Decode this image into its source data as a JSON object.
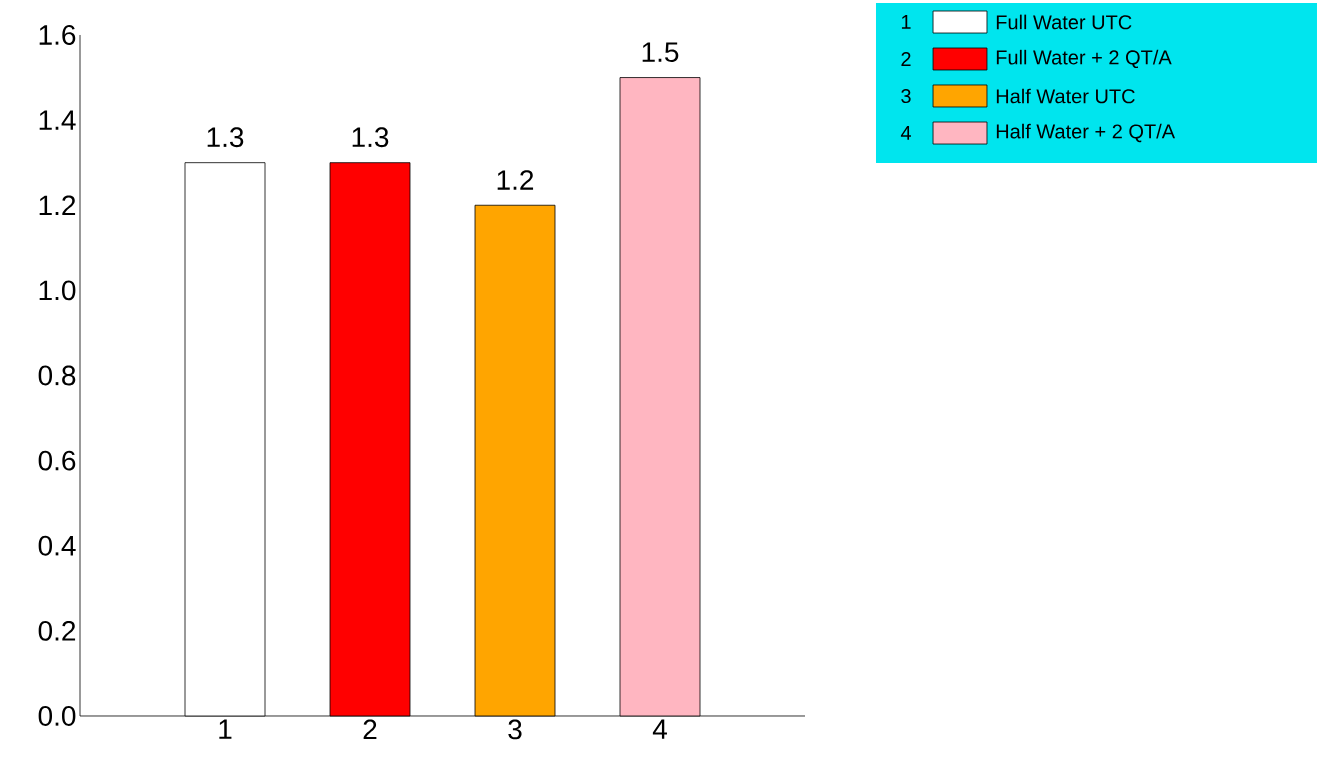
{
  "chart_data": {
    "type": "bar",
    "categories": [
      "1",
      "2",
      "3",
      "4"
    ],
    "series": [
      {
        "name": "Full Water UTC",
        "color": "#ffffff",
        "values": [
          1.3,
          null,
          null,
          null
        ]
      },
      {
        "name": "Full Water + 2 QT/A",
        "color": "#ff0000",
        "values": [
          null,
          1.3,
          null,
          null
        ]
      },
      {
        "name": "Half Water UTC",
        "color": "#ffa500",
        "values": [
          null,
          null,
          1.2,
          null
        ]
      },
      {
        "name": "Half Water + 2 QT/A",
        "color": "#ffb6c1",
        "values": [
          null,
          null,
          null,
          1.5
        ]
      }
    ],
    "ylim": [
      0,
      1.6
    ],
    "yticks": [
      {
        "value": 0,
        "label": "0.0"
      },
      {
        "value": 0.2,
        "label": "0.2"
      },
      {
        "value": 0.4,
        "label": "0.4"
      },
      {
        "value": 0.6,
        "label": "0.6"
      },
      {
        "value": 0.8,
        "label": "0.8"
      },
      {
        "value": 1.0,
        "label": "1.0"
      },
      {
        "value": 1.2,
        "label": "1.2"
      },
      {
        "value": 1.4,
        "label": "1.4"
      },
      {
        "value": 1.6,
        "label": "1.6"
      }
    ],
    "data_labels": true,
    "legend": "top right",
    "grid": false
  }
}
